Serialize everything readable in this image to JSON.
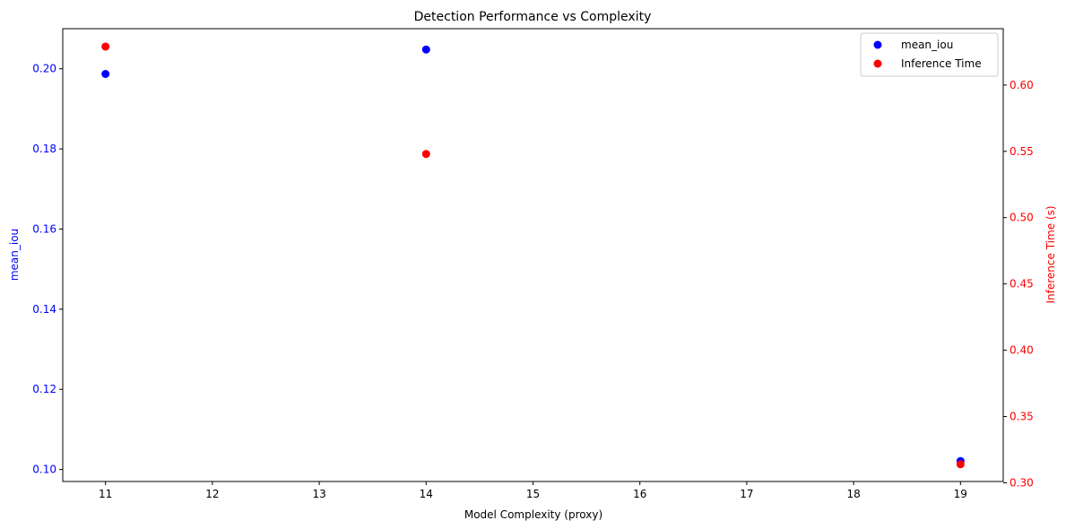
{
  "chart_data": {
    "type": "scatter",
    "title": "Detection Performance vs Complexity",
    "xlabel": "Model Complexity (proxy)",
    "ylabel_left": "mean_iou",
    "ylabel_right": "Inference Time (s)",
    "xlim": [
      10.6,
      19.4
    ],
    "ylim_left": [
      0.097,
      0.21
    ],
    "ylim_right": [
      0.301,
      0.6425
    ],
    "x_ticks": [
      11,
      12,
      13,
      14,
      15,
      16,
      17,
      18,
      19
    ],
    "y_left_ticks": [
      0.1,
      0.12,
      0.14,
      0.16,
      0.18,
      0.2
    ],
    "y_left_tick_labels": [
      "0.10",
      "0.12",
      "0.14",
      "0.16",
      "0.18",
      "0.20"
    ],
    "y_right_ticks": [
      0.3,
      0.35,
      0.4,
      0.45,
      0.5,
      0.55,
      0.6
    ],
    "y_right_tick_labels": [
      "0.30",
      "0.35",
      "0.40",
      "0.45",
      "0.50",
      "0.55",
      "0.60"
    ],
    "grid": false,
    "legend_position": "top-right",
    "series": [
      {
        "name": "mean_iou",
        "axis": "left",
        "color": "#0000ff",
        "points": [
          {
            "x": 11,
            "y": 0.1987
          },
          {
            "x": 14,
            "y": 0.2048
          },
          {
            "x": 19,
            "y": 0.1021
          }
        ]
      },
      {
        "name": "Inference Time",
        "axis": "right",
        "color": "#ff0000",
        "points": [
          {
            "x": 11,
            "y": 0.629
          },
          {
            "x": 14,
            "y": 0.548
          },
          {
            "x": 19,
            "y": 0.314
          }
        ]
      }
    ]
  }
}
